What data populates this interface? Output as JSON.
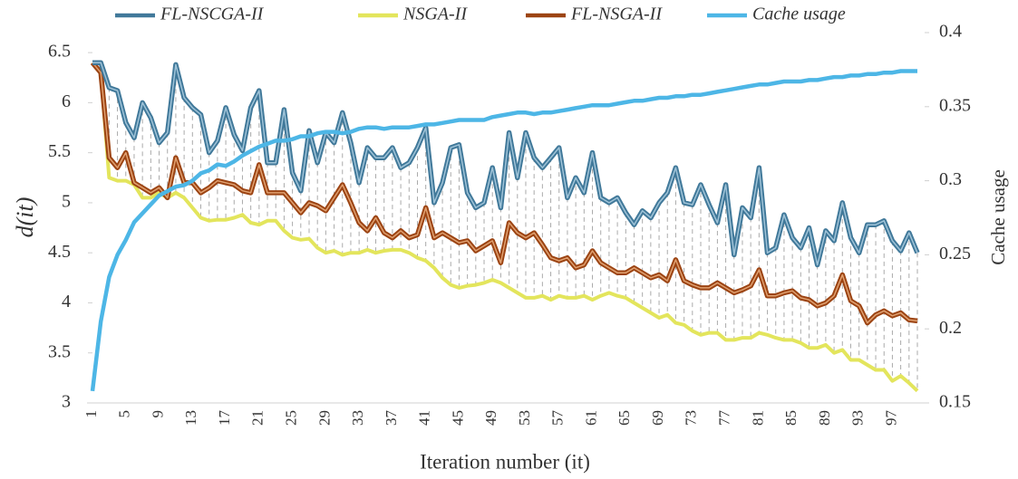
{
  "chart_data": {
    "type": "line",
    "x_label": "Iteration number (it)",
    "y_label": "d(it)",
    "y2_label": "Cache usage",
    "categories": [
      1,
      null,
      null,
      null,
      5,
      null,
      null,
      null,
      9,
      null,
      null,
      null,
      13,
      null,
      null,
      null,
      17,
      null,
      null,
      null,
      21,
      null,
      null,
      null,
      25,
      null,
      null,
      null,
      29,
      null,
      null,
      null,
      33,
      null,
      null,
      null,
      37,
      null,
      null,
      null,
      41,
      null,
      null,
      null,
      45,
      null,
      null,
      null,
      49,
      null,
      null,
      null,
      53,
      null,
      null,
      null,
      57,
      null,
      null,
      null,
      61,
      null,
      null,
      null,
      65,
      null,
      null,
      null,
      69,
      null,
      null,
      null,
      73,
      null,
      null,
      null,
      77,
      null,
      null,
      null,
      81,
      null,
      null,
      null,
      85,
      null,
      null,
      null,
      89,
      null,
      null,
      null,
      93,
      null,
      null,
      null,
      97,
      null,
      null,
      null
    ],
    "ylim": [
      3,
      6.7
    ],
    "yticks": [
      3,
      3.5,
      4,
      4.5,
      5,
      5.5,
      6,
      6.5
    ],
    "y2lim": [
      0.15,
      0.4
    ],
    "y2ticks": [
      0.15,
      0.2,
      0.25,
      0.3,
      0.35,
      0.4
    ],
    "series": [
      {
        "name": "FL-NSCGA-II",
        "color": "#41799a",
        "values": [
          6.4,
          6.4,
          6.15,
          6.12,
          5.8,
          5.65,
          6.0,
          5.85,
          5.6,
          5.7,
          6.38,
          6.05,
          5.95,
          5.88,
          5.5,
          5.62,
          5.95,
          5.68,
          5.52,
          5.95,
          6.12,
          5.4,
          5.4,
          5.93,
          5.3,
          5.12,
          5.72,
          5.4,
          5.7,
          5.6,
          5.9,
          5.6,
          5.2,
          5.55,
          5.45,
          5.45,
          5.55,
          5.35,
          5.4,
          5.55,
          5.75,
          5.0,
          5.2,
          5.55,
          5.58,
          5.1,
          4.95,
          5.0,
          5.35,
          4.95,
          5.7,
          5.25,
          5.7,
          5.45,
          5.35,
          5.45,
          5.55,
          5.05,
          5.25,
          5.1,
          5.5,
          5.05,
          5.0,
          5.05,
          4.9,
          4.78,
          4.92,
          4.85,
          5.0,
          5.1,
          5.35,
          5.0,
          4.98,
          5.18,
          4.98,
          4.8,
          5.18,
          4.48,
          4.95,
          4.85,
          5.35,
          4.5,
          4.55,
          4.88,
          4.65,
          4.55,
          4.75,
          4.38,
          4.72,
          4.62,
          5.0,
          4.65,
          4.5,
          4.78,
          4.78,
          4.82,
          4.62,
          4.52,
          4.7,
          4.5
        ]
      },
      {
        "name": "NSGA-II",
        "color": "#e3e55c",
        "values": [
          6.4,
          6.3,
          5.25,
          5.22,
          5.22,
          5.18,
          5.05,
          5.05,
          5.1,
          5.05,
          5.1,
          5.05,
          4.95,
          4.85,
          4.82,
          4.83,
          4.83,
          4.85,
          4.88,
          4.8,
          4.78,
          4.82,
          4.82,
          4.72,
          4.65,
          4.63,
          4.64,
          4.55,
          4.5,
          4.52,
          4.48,
          4.5,
          4.5,
          4.53,
          4.5,
          4.52,
          4.53,
          4.53,
          4.5,
          4.45,
          4.42,
          4.35,
          4.25,
          4.18,
          4.15,
          4.17,
          4.18,
          4.2,
          4.23,
          4.2,
          4.15,
          4.1,
          4.05,
          4.05,
          4.07,
          4.03,
          4.07,
          4.05,
          4.05,
          4.07,
          4.03,
          4.07,
          4.1,
          4.07,
          4.05,
          4.0,
          3.95,
          3.9,
          3.85,
          3.88,
          3.8,
          3.78,
          3.72,
          3.68,
          3.7,
          3.7,
          3.63,
          3.63,
          3.65,
          3.65,
          3.7,
          3.68,
          3.65,
          3.63,
          3.63,
          3.6,
          3.55,
          3.55,
          3.58,
          3.5,
          3.53,
          3.43,
          3.43,
          3.38,
          3.33,
          3.33,
          3.22,
          3.27,
          3.2,
          3.12
        ]
      },
      {
        "name": "FL-NSGA-II",
        "color": "#9c4413",
        "values": [
          6.4,
          6.3,
          5.45,
          5.35,
          5.5,
          5.2,
          5.15,
          5.1,
          5.15,
          5.05,
          5.45,
          5.2,
          5.2,
          5.1,
          5.15,
          5.22,
          5.2,
          5.18,
          5.12,
          5.1,
          5.38,
          5.1,
          5.1,
          5.1,
          5.0,
          4.9,
          5.0,
          4.97,
          4.92,
          5.05,
          5.18,
          5.0,
          4.8,
          4.72,
          4.85,
          4.7,
          4.65,
          4.72,
          4.65,
          4.68,
          4.95,
          4.65,
          4.7,
          4.65,
          4.6,
          4.62,
          4.52,
          4.57,
          4.62,
          4.4,
          4.8,
          4.7,
          4.65,
          4.7,
          4.58,
          4.45,
          4.42,
          4.45,
          4.35,
          4.38,
          4.52,
          4.4,
          4.35,
          4.3,
          4.3,
          4.35,
          4.3,
          4.25,
          4.28,
          4.22,
          4.43,
          4.22,
          4.18,
          4.15,
          4.15,
          4.2,
          4.15,
          4.1,
          4.13,
          4.17,
          4.33,
          4.07,
          4.07,
          4.1,
          4.12,
          4.05,
          4.03,
          3.97,
          4.0,
          4.07,
          4.28,
          4.02,
          3.97,
          3.8,
          3.88,
          3.92,
          3.87,
          3.9,
          3.83,
          3.82
        ]
      },
      {
        "name": "Cache usage",
        "color": "#4db6e6",
        "axis": "y2",
        "values": [
          0.158,
          0.205,
          0.235,
          0.25,
          0.26,
          0.272,
          0.278,
          0.284,
          0.29,
          0.293,
          0.296,
          0.297,
          0.3,
          0.305,
          0.307,
          0.311,
          0.31,
          0.313,
          0.317,
          0.32,
          0.323,
          0.325,
          0.327,
          0.327,
          0.328,
          0.33,
          0.33,
          0.332,
          0.333,
          0.333,
          0.332,
          0.333,
          0.335,
          0.336,
          0.336,
          0.335,
          0.336,
          0.336,
          0.336,
          0.337,
          0.338,
          0.338,
          0.339,
          0.34,
          0.341,
          0.341,
          0.341,
          0.341,
          0.343,
          0.344,
          0.345,
          0.346,
          0.346,
          0.345,
          0.346,
          0.346,
          0.347,
          0.348,
          0.349,
          0.35,
          0.351,
          0.351,
          0.351,
          0.352,
          0.353,
          0.354,
          0.354,
          0.355,
          0.356,
          0.356,
          0.357,
          0.357,
          0.358,
          0.358,
          0.359,
          0.36,
          0.361,
          0.362,
          0.363,
          0.364,
          0.365,
          0.365,
          0.366,
          0.367,
          0.367,
          0.367,
          0.368,
          0.368,
          0.369,
          0.37,
          0.37,
          0.371,
          0.371,
          0.372,
          0.372,
          0.373,
          0.373,
          0.374,
          0.374,
          0.374
        ]
      }
    ]
  }
}
